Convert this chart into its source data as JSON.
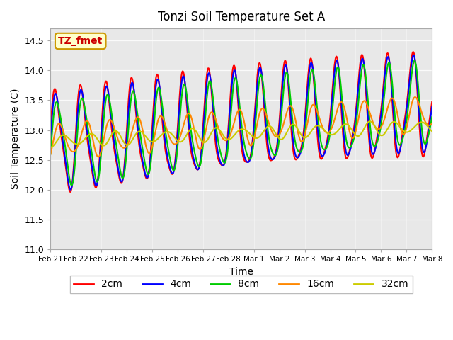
{
  "title": "Tonzi Soil Temperature Set A",
  "xlabel": "Time",
  "ylabel": "Soil Temperature (C)",
  "ylim": [
    11.0,
    14.7
  ],
  "annotation_text": "TZ_fmet",
  "annotation_color": "#cc0000",
  "annotation_bg": "#ffffcc",
  "annotation_border": "#cc9900",
  "colors": {
    "2cm": "#ff0000",
    "4cm": "#0000ff",
    "8cm": "#00cc00",
    "16cm": "#ff8800",
    "32cm": "#cccc00"
  },
  "line_width": 1.5,
  "background_color": "#e8e8e8",
  "tick_labels": [
    "Feb 21",
    "Feb 22",
    "Feb 23",
    "Feb 24",
    "Feb 25",
    "Feb 26",
    "Feb 27",
    "Feb 28",
    "Mar 1",
    "Mar 2",
    "Mar 3",
    "Mar 4",
    "Mar 5",
    "Mar 6",
    "Mar 7",
    "Mar 8"
  ],
  "yticks": [
    11.0,
    11.5,
    12.0,
    12.5,
    13.0,
    13.5,
    14.0,
    14.5
  ]
}
